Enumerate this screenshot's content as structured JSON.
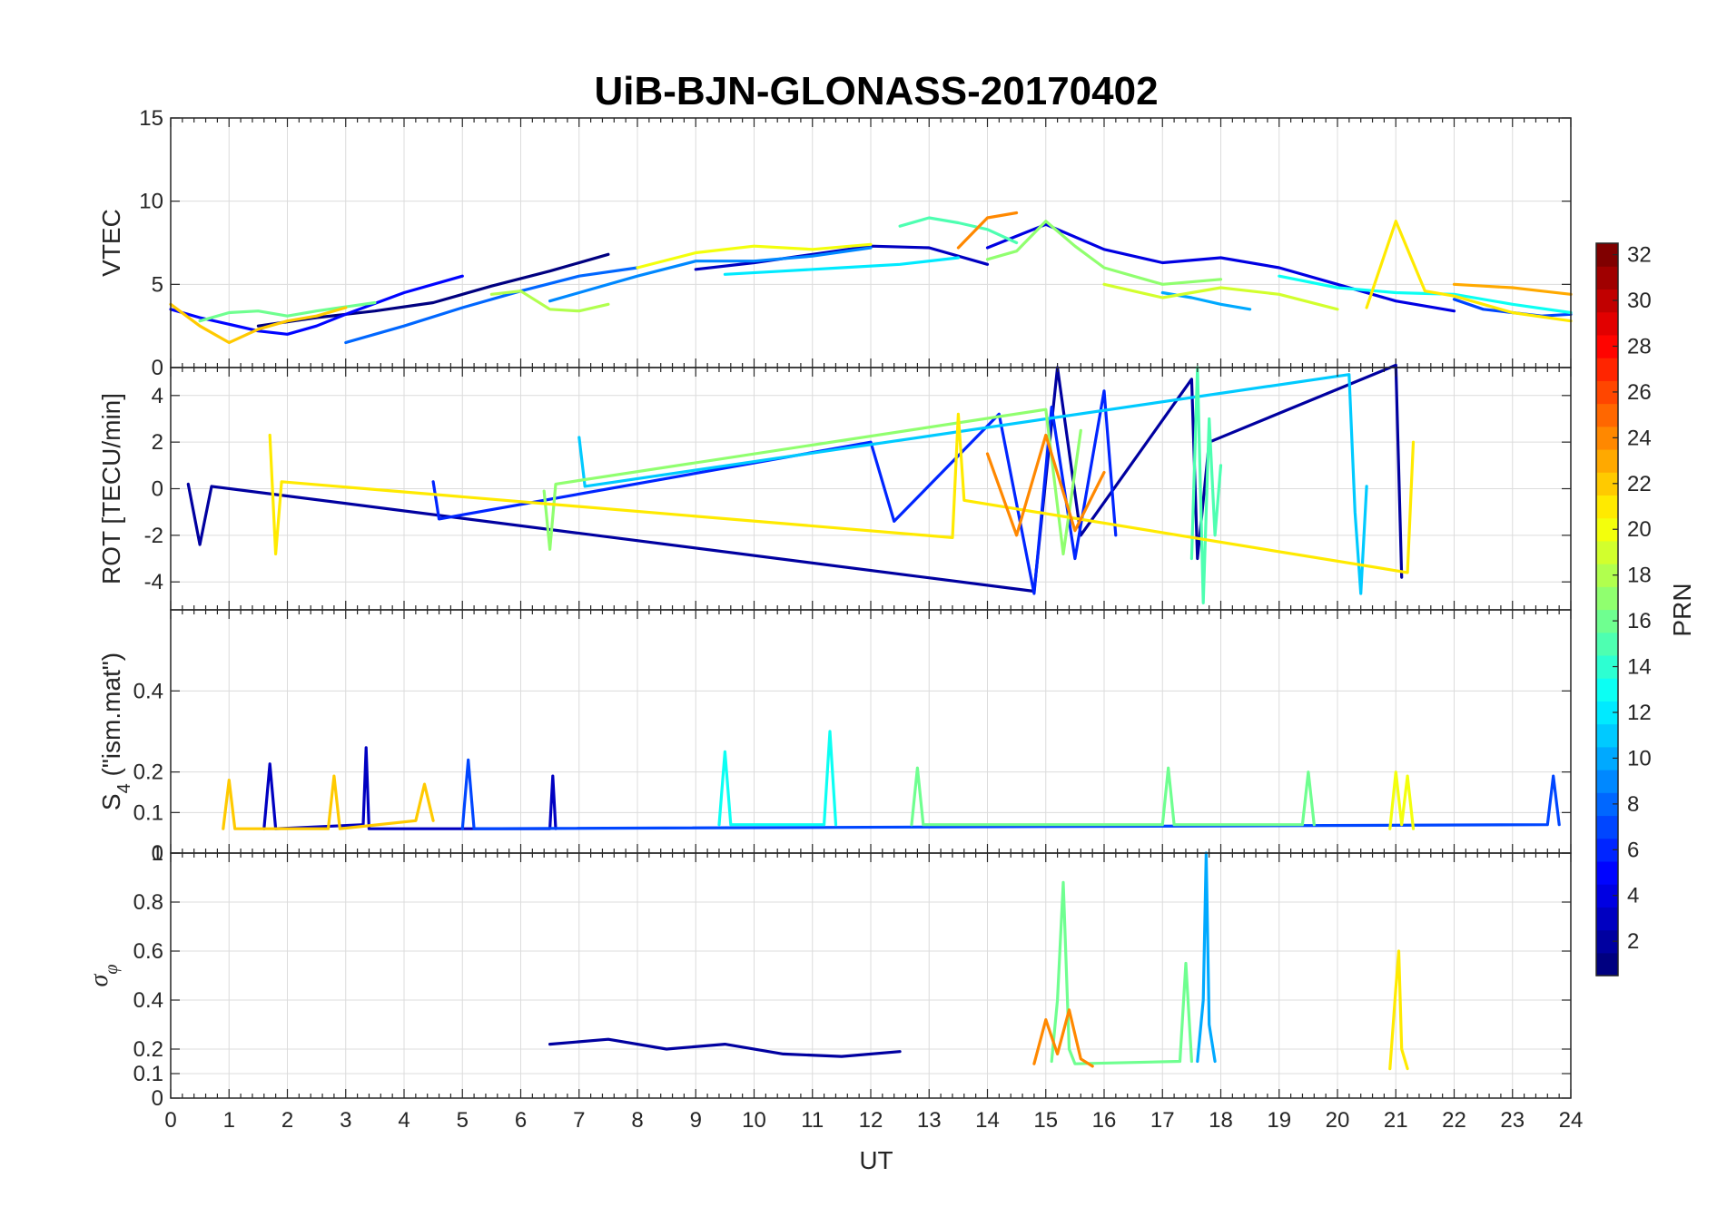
{
  "chart_data": {
    "type": "line",
    "title": "UiB-BJN-GLONASS-20170402",
    "xlabel": "UT",
    "xlim": [
      0,
      24
    ],
    "xticks": [
      0,
      1,
      2,
      3,
      4,
      5,
      6,
      7,
      8,
      9,
      10,
      11,
      12,
      13,
      14,
      15,
      16,
      17,
      18,
      19,
      20,
      21,
      22,
      23,
      24
    ],
    "grid": true,
    "colorbar": {
      "label": "PRN",
      "colormap": "jet",
      "range": [
        1,
        32
      ],
      "ticks": [
        2,
        4,
        6,
        8,
        10,
        12,
        14,
        16,
        18,
        20,
        22,
        24,
        26,
        28,
        30,
        32
      ],
      "position": "right"
    },
    "panels": [
      {
        "id": "vtec",
        "ylabel": "VTEC",
        "ylim": [
          0,
          15
        ],
        "yticks": [
          0,
          5,
          10,
          15
        ],
        "series": [
          {
            "prn": 1,
            "x": [
              1.5,
              2.5,
              3.5,
              4.5,
              5.5,
              6.5,
              7.5
            ],
            "y": [
              2.5,
              3.0,
              3.4,
              3.9,
              4.9,
              5.8,
              6.8
            ]
          },
          {
            "prn": 3,
            "x": [
              9.0,
              10.0,
              11.0,
              12.0,
              13.0,
              14.0
            ],
            "y": [
              5.9,
              6.3,
              6.8,
              7.3,
              7.2,
              6.2
            ]
          },
          {
            "prn": 4,
            "x": [
              14.0,
              15.0,
              16.0,
              17.0,
              18.0,
              19.0,
              20.0,
              21.0,
              22.0
            ],
            "y": [
              7.2,
              8.6,
              7.1,
              6.3,
              6.6,
              6.0,
              5.0,
              4.0,
              3.4
            ]
          },
          {
            "prn": 5,
            "x": [
              0,
              0.5,
              1.0,
              1.5,
              2.0,
              2.5,
              3.0,
              4.0,
              5.0
            ],
            "y": [
              3.5,
              3.0,
              2.6,
              2.2,
              2.0,
              2.5,
              3.2,
              4.5,
              5.5
            ]
          },
          {
            "prn": 7,
            "x": [
              22.0,
              22.5,
              23.0,
              23.5,
              24.0
            ],
            "y": [
              4.1,
              3.5,
              3.3,
              3.1,
              3.2
            ]
          },
          {
            "prn": 8,
            "x": [
              3.0,
              4.0,
              5.0,
              6.0,
              7.0,
              8.0
            ],
            "y": [
              1.5,
              2.5,
              3.6,
              4.6,
              5.5,
              6.0
            ]
          },
          {
            "prn": 9,
            "x": [
              6.5,
              7.0,
              8.0,
              9.0,
              10.0,
              11.0,
              12.0
            ],
            "y": [
              4.0,
              4.5,
              5.5,
              6.4,
              6.4,
              6.7,
              7.2
            ]
          },
          {
            "prn": 10,
            "x": [
              17.0,
              17.5,
              18.0,
              18.5
            ],
            "y": [
              4.5,
              4.2,
              3.8,
              3.5
            ]
          },
          {
            "prn": 12,
            "x": [
              9.5,
              10.5,
              11.5,
              12.5,
              13.5
            ],
            "y": [
              5.6,
              5.8,
              6.0,
              6.2,
              6.6
            ]
          },
          {
            "prn": 13,
            "x": [
              19.0,
              20.0,
              21.0,
              22.0,
              23.0,
              24.0
            ],
            "y": [
              5.5,
              4.8,
              4.5,
              4.4,
              3.8,
              3.3
            ]
          },
          {
            "prn": 15,
            "x": [
              12.5,
              13.0,
              13.5,
              14.0,
              14.5
            ],
            "y": [
              8.5,
              9.0,
              8.7,
              8.3,
              7.5
            ]
          },
          {
            "prn": 16,
            "x": [
              0.5,
              1.0,
              1.5,
              2.0,
              2.5,
              3.5
            ],
            "y": [
              2.8,
              3.3,
              3.4,
              3.1,
              3.4,
              3.9
            ]
          },
          {
            "prn": 17,
            "x": [
              14.0,
              14.5,
              15.0,
              15.5,
              16.0,
              17.0,
              18.0
            ],
            "y": [
              6.5,
              7.0,
              8.8,
              7.3,
              6.0,
              5.0,
              5.3
            ]
          },
          {
            "prn": 18,
            "x": [
              5.5,
              6.0,
              6.5,
              7.0,
              7.5
            ],
            "y": [
              4.4,
              4.6,
              3.5,
              3.4,
              3.8
            ]
          },
          {
            "prn": 19,
            "x": [
              16.0,
              17.0,
              18.0,
              19.0,
              20.0
            ],
            "y": [
              5.0,
              4.2,
              4.8,
              4.4,
              3.5
            ]
          },
          {
            "prn": 20,
            "x": [
              8.0,
              9.0,
              10.0,
              11.0,
              12.0
            ],
            "y": [
              6.0,
              6.9,
              7.3,
              7.1,
              7.4
            ]
          },
          {
            "prn": 21,
            "x": [
              20.5,
              21.0,
              21.5,
              22.0,
              23.0,
              24.0
            ],
            "y": [
              3.6,
              8.8,
              4.6,
              4.3,
              3.3,
              2.8
            ]
          },
          {
            "prn": 22,
            "x": [
              0,
              0.5,
              1.0,
              1.5,
              2.0,
              2.5,
              3.0
            ],
            "y": [
              3.8,
              2.5,
              1.5,
              2.3,
              2.8,
              3.1,
              3.6
            ]
          },
          {
            "prn": 23,
            "x": [
              22.0,
              22.5,
              23.0,
              23.5,
              24.0
            ],
            "y": [
              5.0,
              4.9,
              4.8,
              4.6,
              4.4
            ]
          },
          {
            "prn": 24,
            "x": [
              13.5,
              14.0,
              14.5
            ],
            "y": [
              7.2,
              9.0,
              9.3
            ]
          }
        ]
      },
      {
        "id": "rot",
        "ylabel": "ROT [TECU/min]",
        "ylim": [
          -5.2,
          5.2
        ],
        "yticks": [
          -4,
          -2,
          0,
          2,
          4
        ],
        "series": [
          {
            "prn": 2,
            "x": [
              0.3,
              0.5,
              0.7,
              14.8,
              15.2,
              15.6,
              17.5,
              17.6,
              17.8,
              21.0,
              21.1
            ],
            "y": [
              0.2,
              -2.4,
              0.1,
              -4.4,
              5.2,
              -2.0,
              4.7,
              -3.0,
              2.0,
              5.3,
              -3.8
            ]
          },
          {
            "prn": 6,
            "x": [
              4.5,
              4.6,
              12.0,
              12.4,
              14.2,
              14.8,
              15.1,
              15.5,
              16.0,
              16.2
            ],
            "y": [
              0.3,
              -1.3,
              2.0,
              -1.4,
              3.2,
              -4.5,
              3.5,
              -3.0,
              4.2,
              -2.0
            ]
          },
          {
            "prn": 11,
            "x": [
              7.0,
              7.1,
              20.2,
              20.3,
              20.4,
              20.5
            ],
            "y": [
              2.2,
              0.1,
              4.9,
              -1.0,
              -4.5,
              0.1
            ]
          },
          {
            "prn": 15,
            "x": [
              17.5,
              17.6,
              17.7,
              17.8,
              17.9,
              18.0
            ],
            "y": [
              -3.0,
              5.2,
              -4.9,
              3.0,
              -2.0,
              1.0
            ]
          },
          {
            "prn": 17,
            "x": [
              6.4,
              6.5,
              6.6,
              15.0,
              15.3,
              15.6
            ],
            "y": [
              -0.1,
              -2.6,
              0.2,
              3.4,
              -2.8,
              2.5
            ]
          },
          {
            "prn": 21,
            "x": [
              1.7,
              1.8,
              1.9,
              13.4,
              13.5,
              13.6,
              21.2,
              21.3
            ],
            "y": [
              2.3,
              -2.8,
              0.3,
              -2.1,
              3.2,
              -0.5,
              -3.6,
              2.0
            ]
          },
          {
            "prn": 24,
            "x": [
              14.0,
              14.5,
              15.0,
              15.5,
              16.0
            ],
            "y": [
              1.5,
              -2.0,
              2.3,
              -1.8,
              0.7
            ]
          }
        ]
      },
      {
        "id": "s4",
        "ylabel": "S4 (\"ism.mat\")",
        "ylim": [
          0,
          0.6
        ],
        "yticks": [
          0,
          0.1,
          0.2,
          0.4
        ],
        "series": [
          {
            "prn": 3,
            "x": [
              1.6,
              1.7,
              1.8,
              3.3,
              3.35,
              3.4,
              6.5,
              6.55,
              6.6
            ],
            "y": [
              0.06,
              0.22,
              0.06,
              0.07,
              0.26,
              0.06,
              0.06,
              0.19,
              0.06
            ]
          },
          {
            "prn": 7,
            "x": [
              5.0,
              5.1,
              5.2,
              23.6,
              23.7,
              23.8
            ],
            "y": [
              0.06,
              0.23,
              0.06,
              0.07,
              0.19,
              0.07
            ]
          },
          {
            "prn": 13,
            "x": [
              9.4,
              9.5,
              9.6,
              11.2,
              11.3,
              11.4
            ],
            "y": [
              0.07,
              0.25,
              0.07,
              0.07,
              0.3,
              0.07
            ]
          },
          {
            "prn": 16,
            "x": [
              12.7,
              12.8,
              12.9,
              17.0,
              17.1,
              17.2,
              19.4,
              19.5,
              19.6
            ],
            "y": [
              0.07,
              0.21,
              0.07,
              0.07,
              0.21,
              0.07,
              0.07,
              0.2,
              0.07
            ]
          },
          {
            "prn": 20,
            "x": [
              20.9,
              21.0,
              21.1,
              21.2,
              21.3
            ],
            "y": [
              0.06,
              0.2,
              0.07,
              0.19,
              0.06
            ]
          },
          {
            "prn": 22,
            "x": [
              0.9,
              1.0,
              1.1,
              2.7,
              2.8,
              2.9,
              4.2,
              4.35,
              4.5
            ],
            "y": [
              0.06,
              0.18,
              0.06,
              0.06,
              0.19,
              0.06,
              0.08,
              0.17,
              0.08
            ]
          }
        ]
      },
      {
        "id": "sigma_phi",
        "ylabel": "σφ",
        "ylim": [
          0,
          1
        ],
        "yticks": [
          0,
          0.1,
          0.2,
          0.4,
          0.6,
          0.8,
          1
        ],
        "series": [
          {
            "prn": 2,
            "x": [
              6.5,
              7.5,
              8.5,
              9.5,
              10.5,
              11.5,
              12.5
            ],
            "y": [
              0.22,
              0.24,
              0.2,
              0.22,
              0.18,
              0.17,
              0.19
            ]
          },
          {
            "prn": 10,
            "x": [
              17.6,
              17.7,
              17.75,
              17.8,
              17.9
            ],
            "y": [
              0.15,
              0.4,
              1.0,
              0.3,
              0.15
            ]
          },
          {
            "prn": 16,
            "x": [
              15.1,
              15.2,
              15.3,
              15.4,
              15.5,
              17.3,
              17.4,
              17.5
            ],
            "y": [
              0.15,
              0.4,
              0.88,
              0.2,
              0.14,
              0.15,
              0.55,
              0.15
            ]
          },
          {
            "prn": 21,
            "x": [
              20.9,
              21.0,
              21.05,
              21.1,
              21.2
            ],
            "y": [
              0.12,
              0.45,
              0.6,
              0.2,
              0.12
            ]
          },
          {
            "prn": 24,
            "x": [
              14.8,
              15.0,
              15.2,
              15.4,
              15.6,
              15.8
            ],
            "y": [
              0.14,
              0.32,
              0.18,
              0.36,
              0.16,
              0.13
            ]
          }
        ]
      }
    ]
  }
}
